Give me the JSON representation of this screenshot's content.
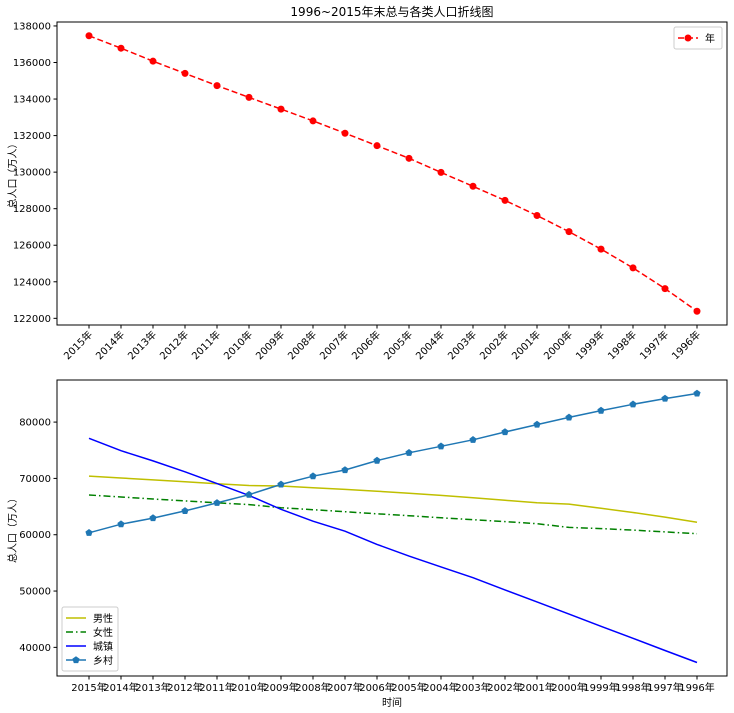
{
  "chart_data": [
    {
      "type": "line",
      "title": "1996~2015年末总与各类人口折线图",
      "xlabel": "",
      "ylabel": "总人口（万人）",
      "categories": [
        "2015年",
        "2014年",
        "2013年",
        "2012年",
        "2011年",
        "2010年",
        "2009年",
        "2008年",
        "2007年",
        "2006年",
        "2005年",
        "2004年",
        "2003年",
        "2002年",
        "2001年",
        "2000年",
        "1999年",
        "1998年",
        "1997年",
        "1996年"
      ],
      "ylim": [
        121635,
        138216
      ],
      "yticks": [
        122000,
        124000,
        126000,
        128000,
        130000,
        132000,
        134000,
        136000,
        138000
      ],
      "legend_position": "top-right",
      "series": [
        {
          "name": "年",
          "color": "#ff0000",
          "style": "dashed",
          "marker": "circle",
          "values": [
            137462,
            136782,
            136072,
            135404,
            134735,
            134091,
            133450,
            132802,
            132129,
            131448,
            130756,
            129988,
            129227,
            128453,
            127627,
            126743,
            125786,
            124761,
            123626,
            122389
          ]
        }
      ]
    },
    {
      "type": "line",
      "title": "",
      "xlabel": "时间",
      "ylabel": "总人口（万人）",
      "categories": [
        "2015年",
        "2014年",
        "2013年",
        "2012年",
        "2011年",
        "2010年",
        "2009年",
        "2008年",
        "2007年",
        "2006年",
        "2005年",
        "2004年",
        "2003年",
        "2002年",
        "2001年",
        "2000年",
        "1999年",
        "1998年",
        "1997年",
        "1996年"
      ],
      "ylim": [
        34915,
        87474
      ],
      "yticks": [
        40000,
        50000,
        60000,
        70000,
        80000
      ],
      "legend_position": "lower-left",
      "series": [
        {
          "name": "男性",
          "color": "#bfbf00",
          "style": "solid",
          "marker": "none",
          "values": [
            70414,
            70079,
            69728,
            69395,
            69068,
            68748,
            68647,
            68357,
            68048,
            67728,
            67375,
            66976,
            66556,
            66115,
            65672,
            65437,
            64692,
            63940,
            63131,
            62200
          ]
        },
        {
          "name": "女性",
          "color": "#008000",
          "style": "dashdot",
          "marker": "none",
          "values": [
            67048,
            66703,
            66344,
            66009,
            65667,
            65343,
            64803,
            64445,
            64081,
            63720,
            63381,
            63012,
            62671,
            62338,
            61955,
            61306,
            61094,
            60821,
            60495,
            60189
          ]
        },
        {
          "name": "城镇",
          "color": "#0000ff",
          "style": "solid",
          "marker": "none",
          "values": [
            77116,
            74916,
            73111,
            71182,
            69079,
            66978,
            64512,
            62403,
            60633,
            58288,
            56212,
            54283,
            52376,
            50212,
            48064,
            45906,
            43748,
            41608,
            39449,
            37304
          ]
        },
        {
          "name": "乡村",
          "color": "#1f77b4",
          "style": "solid",
          "marker": "pentagon",
          "values": [
            60346,
            61866,
            62961,
            64222,
            65656,
            67113,
            68938,
            70399,
            71496,
            73160,
            74544,
            75705,
            76851,
            78241,
            79563,
            80837,
            82038,
            83153,
            84177,
            85085
          ]
        }
      ]
    }
  ]
}
